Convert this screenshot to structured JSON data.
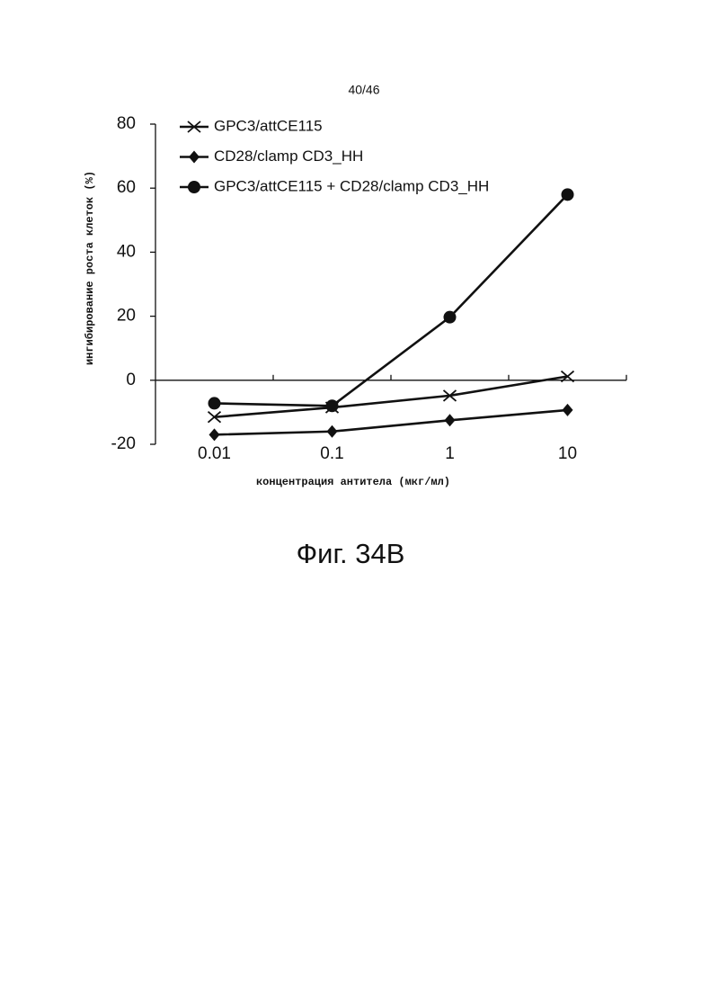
{
  "page_number": "40/46",
  "caption": "Фиг. 34B",
  "chart_data": {
    "type": "line",
    "categories": [
      "0.01",
      "0.1",
      "1",
      "10"
    ],
    "xlabel": "концентрация антитела (мкг/мл)",
    "ylabel": "ингибирование роста клеток (%)",
    "ylim": [
      -20,
      80
    ],
    "yticks": [
      -20,
      0,
      20,
      40,
      60,
      80
    ],
    "legend": "top-left",
    "series": [
      {
        "name": "GPC3/attCE115",
        "color": "#111111",
        "marker": "x",
        "values": [
          -11.5,
          -8.5,
          -4.8,
          1.2
        ]
      },
      {
        "name": "CD28/clamp CD3_HH",
        "color": "#111111",
        "marker": "diamond",
        "values": [
          -17,
          -16,
          -12.5,
          -9.3
        ]
      },
      {
        "name": "GPC3/attCE115 + CD28/clamp CD3_HH",
        "color": "#111111",
        "marker": "circle",
        "values": [
          -7.2,
          -8,
          19.7,
          58
        ]
      }
    ]
  }
}
